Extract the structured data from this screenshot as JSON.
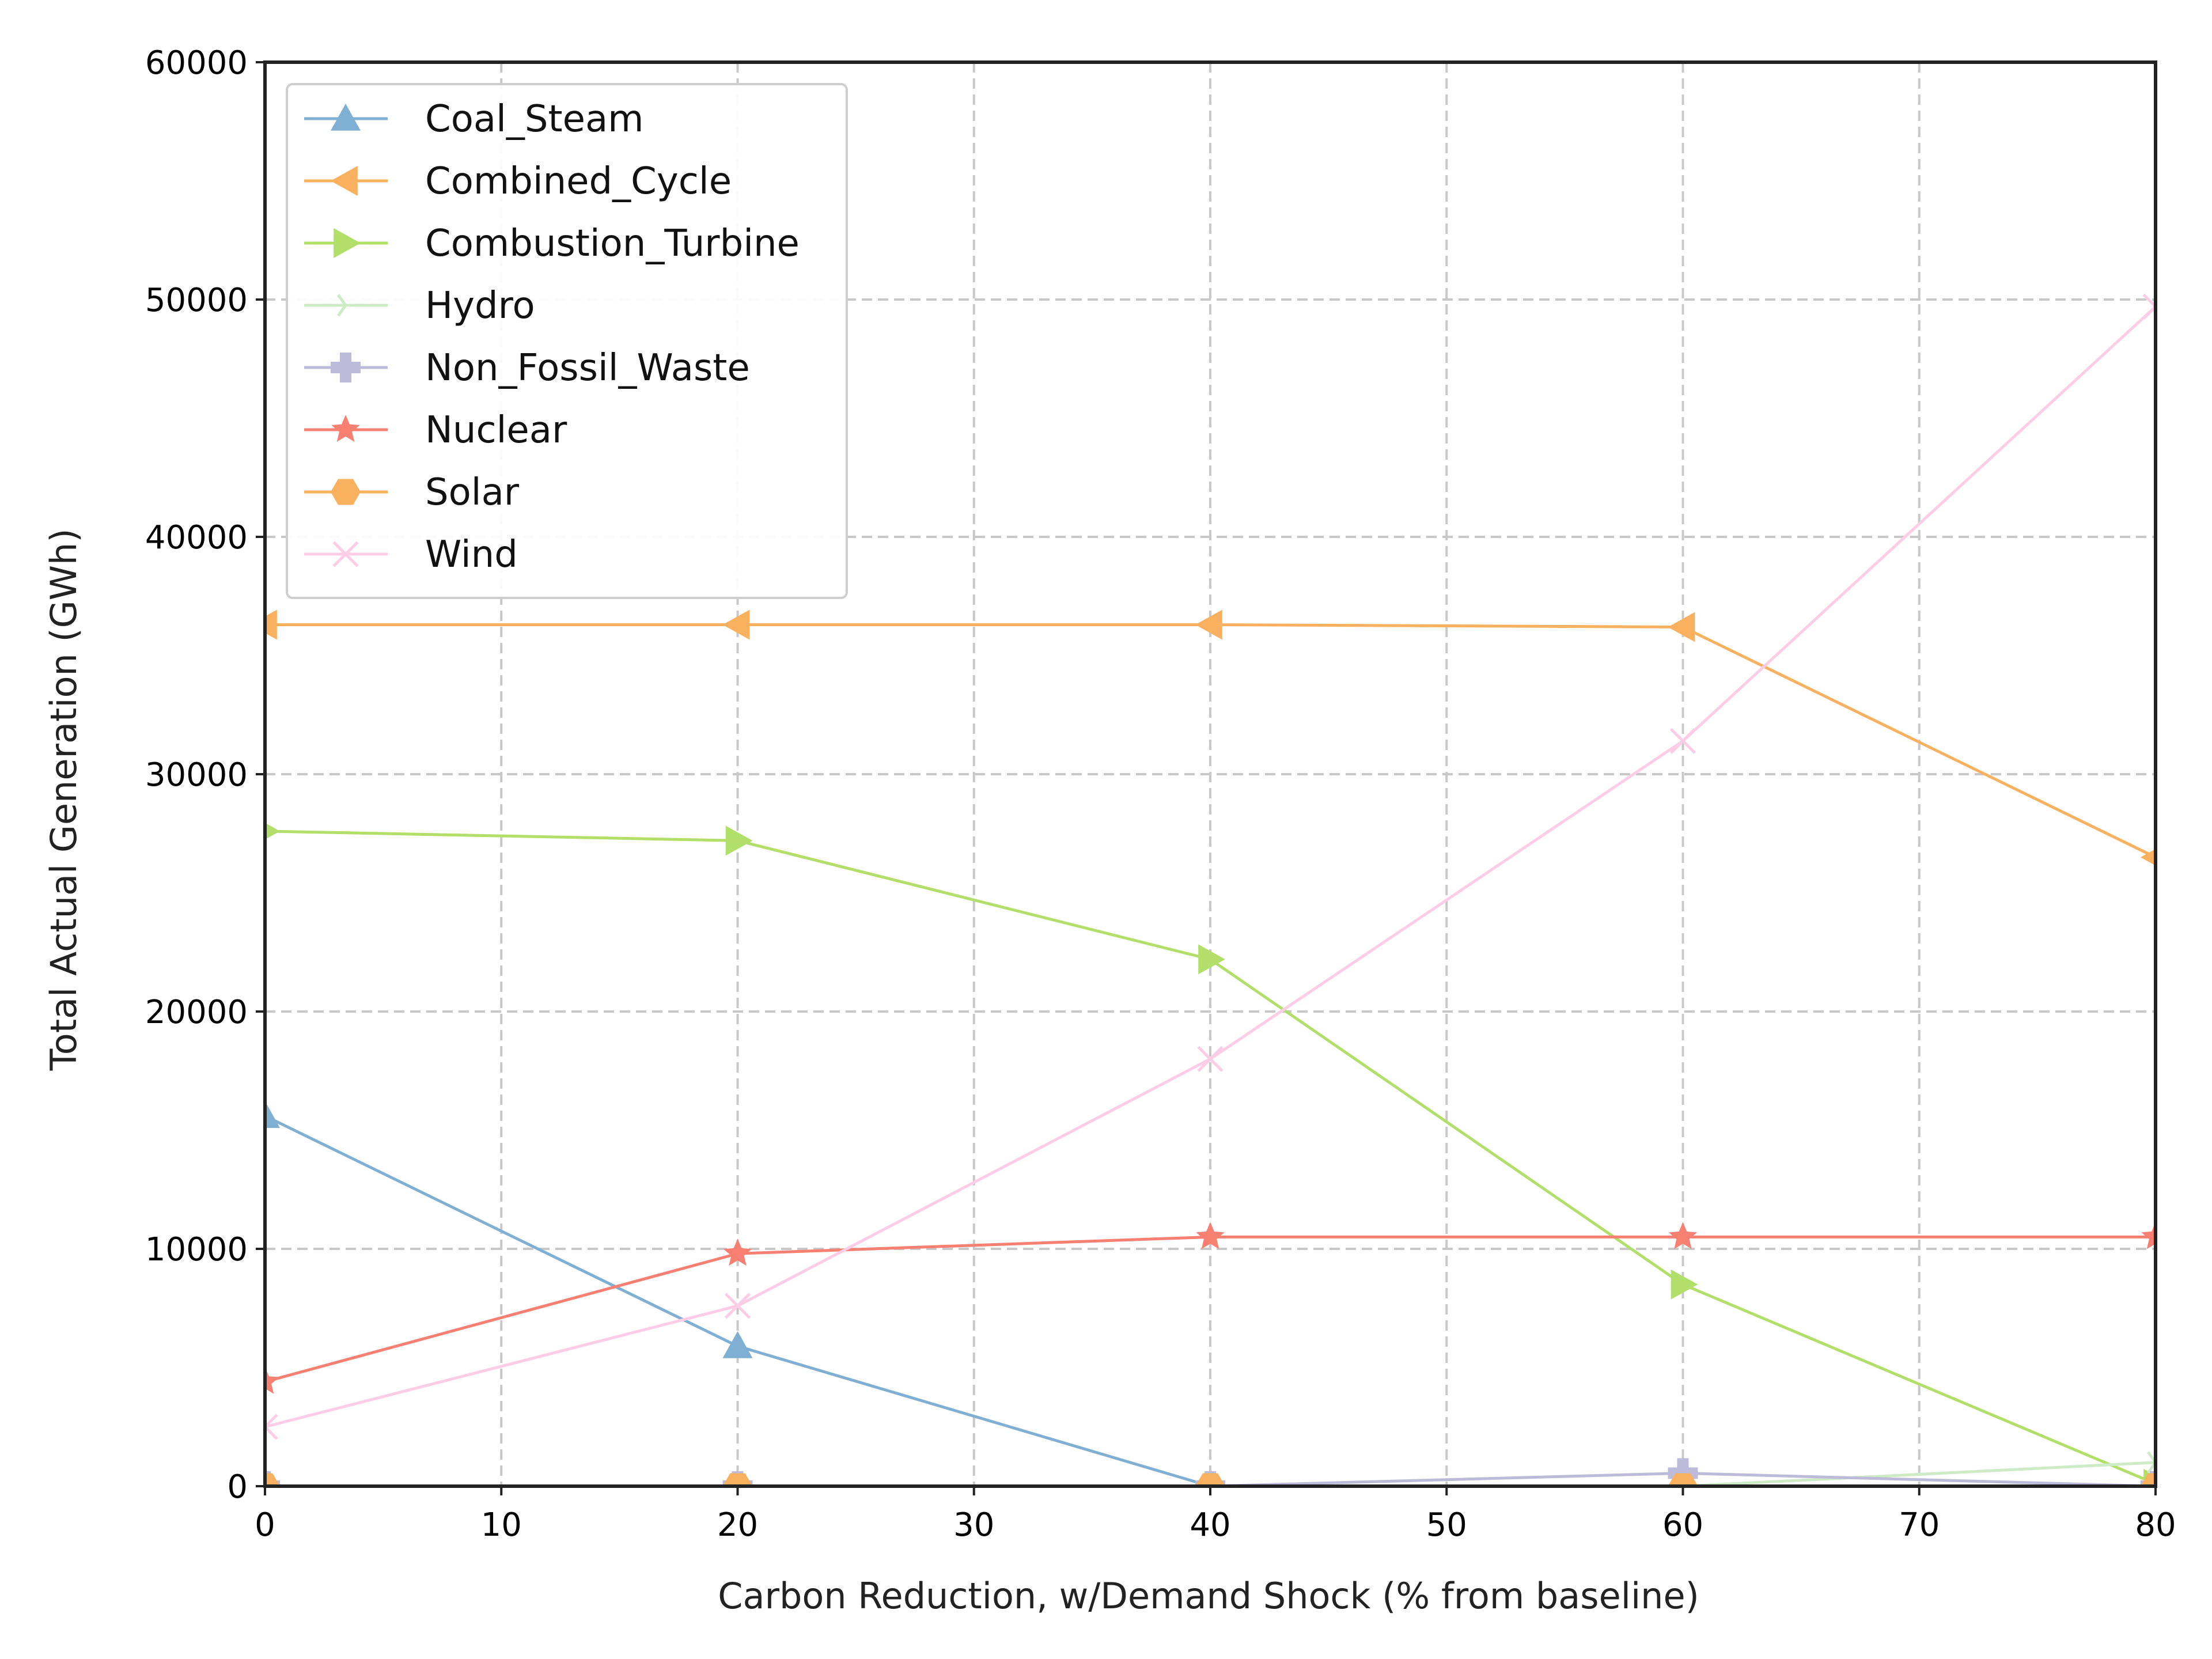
{
  "chart_data": {
    "type": "line",
    "title": "",
    "xlabel": "Carbon Reduction, w/Demand Shock (% from baseline)",
    "ylabel": "Total Actual Generation (GWh)",
    "xlim": [
      0,
      80
    ],
    "ylim": [
      0,
      60000
    ],
    "xticks": [
      0,
      10,
      20,
      30,
      40,
      50,
      60,
      70,
      80
    ],
    "yticks": [
      0,
      10000,
      20000,
      30000,
      40000,
      50000,
      60000
    ],
    "xtick_labels": [
      "0",
      "10",
      "20",
      "30",
      "40",
      "50",
      "60",
      "70",
      "80"
    ],
    "ytick_labels": [
      "0",
      "10000",
      "20000",
      "30000",
      "40000",
      "50000",
      "60000"
    ],
    "grid": true,
    "legend_position": "top-left",
    "x": [
      0,
      20,
      40,
      60,
      80
    ],
    "series": [
      {
        "name": "Coal_Steam",
        "color": "#7fb0d3",
        "marker": "triangle-up",
        "values": [
          15600,
          5900,
          0,
          0,
          0
        ]
      },
      {
        "name": "Combined_Cycle",
        "color": "#f9b05f",
        "marker": "triangle-left",
        "values": [
          36300,
          36300,
          36300,
          36200,
          26500
        ]
      },
      {
        "name": "Combustion_Turbine",
        "color": "#b2df69",
        "marker": "triangle-right",
        "values": [
          27600,
          27200,
          22200,
          8500,
          100
        ]
      },
      {
        "name": "Hydro",
        "color": "#cdebc5",
        "marker": "tri-right",
        "values": [
          0,
          0,
          0,
          0,
          1000
        ]
      },
      {
        "name": "Non_Fossil_Waste",
        "color": "#bdbbd9",
        "marker": "plus-filled",
        "values": [
          0,
          0,
          0,
          550,
          0
        ]
      },
      {
        "name": "Nuclear",
        "color": "#f88072",
        "marker": "star",
        "values": [
          4400,
          9800,
          10500,
          10500,
          10500
        ]
      },
      {
        "name": "Solar",
        "color": "#f9b05f",
        "marker": "hexagon",
        "values": [
          0,
          0,
          0,
          0,
          0
        ]
      },
      {
        "name": "Wind",
        "color": "#fccde5",
        "marker": "x",
        "values": [
          2500,
          7600,
          18000,
          31400,
          49700
        ]
      }
    ]
  }
}
